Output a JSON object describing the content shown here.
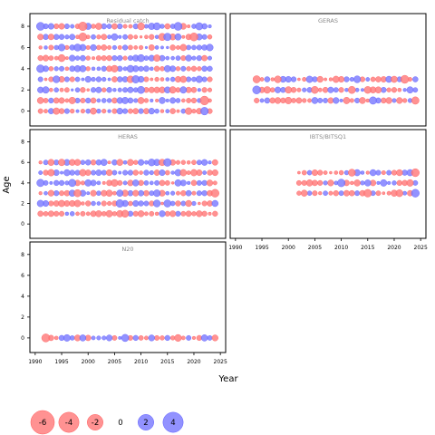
{
  "chart_data": {
    "type": "scatter",
    "subtype": "bubble residual plot",
    "xlabel": "Year",
    "ylabel": "Age",
    "xlim": [
      1989,
      2026
    ],
    "ylim": [
      -1.4,
      9.2
    ],
    "x_ticks": [
      1990,
      1995,
      2000,
      2005,
      2010,
      2015,
      2020,
      2025
    ],
    "y_ticks": [
      0,
      2,
      4,
      6,
      8
    ],
    "colors": {
      "negative": "#ff7f7f",
      "positive": "#7f7fff",
      "negative_stroke": "#ff5a5a",
      "positive_stroke": "#5a5aff"
    },
    "legend": {
      "placement": "bottom-left",
      "values": [
        -6,
        -4,
        -2,
        0,
        2,
        4
      ],
      "labels": [
        "-6",
        "-4",
        "-2",
        "0",
        "2",
        "4"
      ]
    },
    "panels": [
      {
        "title": "Residual catch",
        "ages": [
          0,
          1,
          2,
          3,
          4,
          5,
          6,
          7,
          8
        ],
        "year_range": [
          1991,
          2023
        ],
        "seed": 11,
        "sample_points": [
          {
            "x": 1991,
            "y": 8,
            "r": 2.5
          },
          {
            "x": 1999,
            "y": 8,
            "r": -3
          },
          {
            "x": 1999,
            "y": 7,
            "r": -2.5
          },
          {
            "x": 2017,
            "y": 8,
            "r": 2.5
          },
          {
            "x": 2020,
            "y": 7,
            "r": -2.5
          },
          {
            "x": 2022,
            "y": 1,
            "r": -3.2
          },
          {
            "x": 2022,
            "y": 0,
            "r": 2.2
          },
          {
            "x": 1991,
            "y": 4,
            "r": 2.2
          }
        ]
      },
      {
        "title": "GERAS",
        "ages": [
          1,
          2,
          3
        ],
        "year_range": [
          1994,
          2024
        ],
        "seed": 23,
        "sample_points": [
          {
            "x": 1994,
            "y": 2,
            "r": 2.5
          },
          {
            "x": 2022,
            "y": 3,
            "r": -2.5
          },
          {
            "x": 2024,
            "y": 1,
            "r": -2
          },
          {
            "x": 2016,
            "y": 1,
            "r": 2
          }
        ]
      },
      {
        "title": "HERAS",
        "ages": [
          1,
          2,
          3,
          4,
          5,
          6
        ],
        "year_range": [
          1991,
          2024
        ],
        "seed": 37,
        "sample_points": [
          {
            "x": 2006,
            "y": 2,
            "r": 2.2
          },
          {
            "x": 2024,
            "y": 3,
            "r": -2.4
          },
          {
            "x": 2015,
            "y": 6,
            "r": 2.2
          },
          {
            "x": 1991,
            "y": 4,
            "r": 2
          }
        ]
      },
      {
        "title": "IBTS/BITSQ1",
        "ages": [
          3,
          4,
          5
        ],
        "year_range": [
          2002,
          2024
        ],
        "seed": 53,
        "sample_points": [
          {
            "x": 2024,
            "y": 5,
            "r": -2.4
          },
          {
            "x": 2024,
            "y": 3,
            "r": 2.4
          },
          {
            "x": 2010,
            "y": 4,
            "r": 2.2
          },
          {
            "x": 2015,
            "y": 3,
            "r": -2.2
          }
        ]
      },
      {
        "title": "N20",
        "ages": [
          0
        ],
        "year_range": [
          1992,
          2024
        ],
        "seed": 71,
        "sample_points": [
          {
            "x": 1992,
            "y": 0,
            "r": -2.6
          },
          {
            "x": 2017,
            "y": 0,
            "r": -1.6
          }
        ]
      }
    ]
  }
}
